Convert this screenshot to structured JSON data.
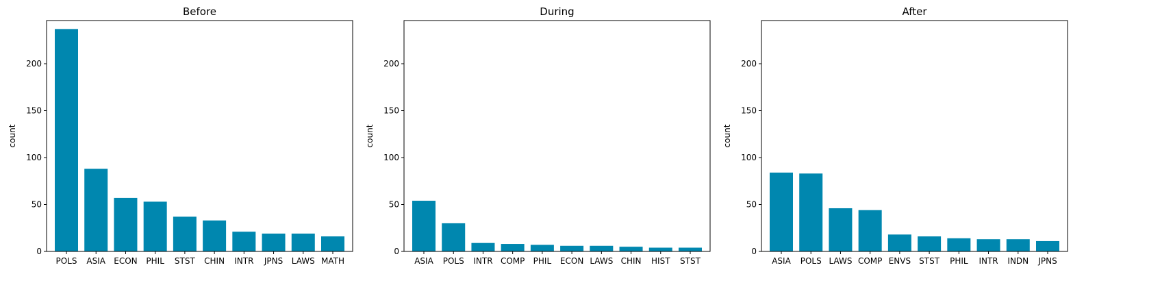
{
  "colors": {
    "bar": "#0087af"
  },
  "chart_data": [
    {
      "type": "bar",
      "title": "Before",
      "xlabel": "",
      "ylabel": "count",
      "ylim": [
        0,
        246
      ],
      "yticks": [
        0,
        50,
        100,
        150,
        200
      ],
      "categories": [
        "POLS",
        "ASIA",
        "ECON",
        "PHIL",
        "STST",
        "CHIN",
        "INTR",
        "JPNS",
        "LAWS",
        "MATH"
      ],
      "values": [
        237,
        88,
        57,
        53,
        37,
        33,
        21,
        19,
        19,
        16
      ]
    },
    {
      "type": "bar",
      "title": "During",
      "xlabel": "",
      "ylabel": "count",
      "ylim": [
        0,
        246
      ],
      "yticks": [
        0,
        50,
        100,
        150,
        200
      ],
      "categories": [
        "ASIA",
        "POLS",
        "INTR",
        "COMP",
        "PHIL",
        "ECON",
        "LAWS",
        "CHIN",
        "HIST",
        "STST"
      ],
      "values": [
        54,
        30,
        9,
        8,
        7,
        6,
        6,
        5,
        4,
        4
      ]
    },
    {
      "type": "bar",
      "title": "After",
      "xlabel": "",
      "ylabel": "count",
      "ylim": [
        0,
        246
      ],
      "yticks": [
        0,
        50,
        100,
        150,
        200
      ],
      "categories": [
        "ASIA",
        "POLS",
        "LAWS",
        "COMP",
        "ENVS",
        "STST",
        "PHIL",
        "INTR",
        "INDN",
        "JPNS"
      ],
      "values": [
        84,
        83,
        46,
        44,
        18,
        16,
        14,
        13,
        13,
        11
      ]
    }
  ]
}
